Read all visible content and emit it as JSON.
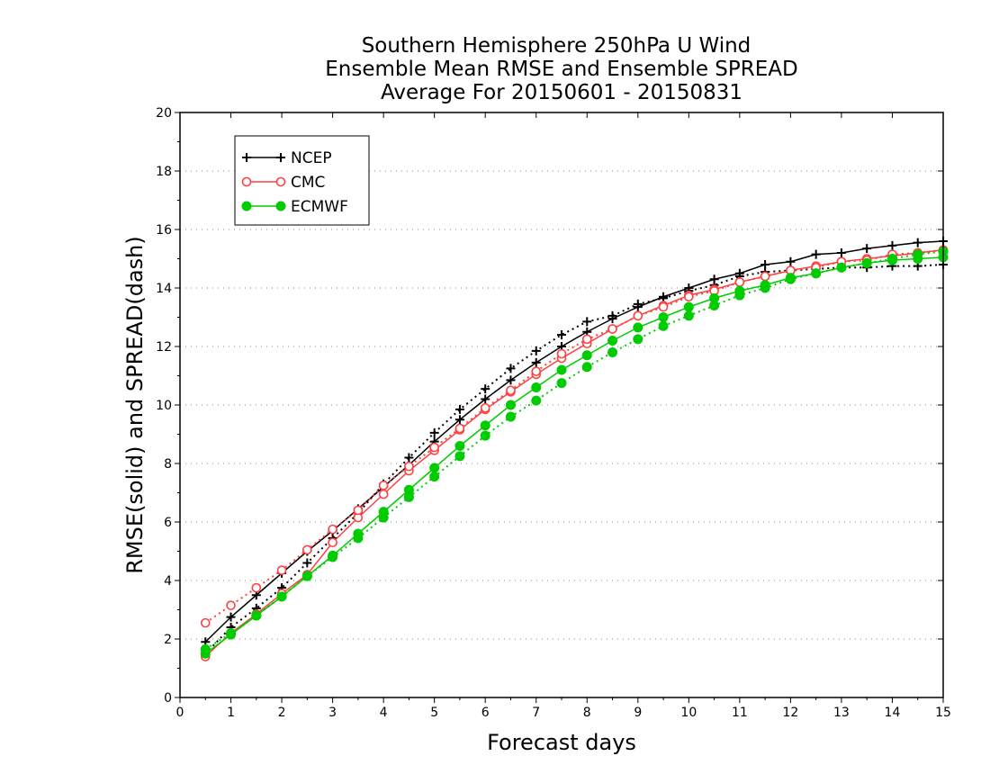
{
  "chart_data": {
    "type": "line",
    "title": [
      "Southern Hemisphere 250hPa U Wind",
      "Ensemble Mean RMSE and Ensemble SPREAD",
      "Average For 20150601 - 20150831"
    ],
    "xlabel": "Forecast days",
    "ylabel": "RMSE(solid) and SPREAD(dash)",
    "xlim": [
      0,
      15
    ],
    "ylim": [
      0,
      20
    ],
    "xticks": [
      0,
      1,
      2,
      3,
      4,
      5,
      6,
      7,
      8,
      9,
      10,
      11,
      12,
      13,
      14,
      15
    ],
    "yticks": [
      0,
      2,
      4,
      6,
      8,
      10,
      12,
      14,
      16,
      18,
      20
    ],
    "grid": true,
    "legend": "top-left",
    "x": [
      0.5,
      1,
      1.5,
      2,
      2.5,
      3,
      3.5,
      4,
      4.5,
      5,
      5.5,
      6,
      6.5,
      7,
      7.5,
      8,
      8.5,
      9,
      9.5,
      10,
      10.5,
      11,
      11.5,
      12,
      12.5,
      13,
      13.5,
      14,
      14.5,
      15
    ],
    "series": [
      {
        "name": "NCEP",
        "metric": "RMSE",
        "color": "#000000",
        "marker": "plus",
        "line": "solid",
        "values": [
          1.9,
          2.75,
          3.5,
          4.25,
          5.0,
          5.7,
          6.45,
          7.2,
          7.95,
          8.75,
          9.5,
          10.2,
          10.85,
          11.45,
          12.0,
          12.5,
          12.95,
          13.35,
          13.7,
          14.0,
          14.3,
          14.5,
          14.8,
          14.9,
          15.15,
          15.2,
          15.35,
          15.45,
          15.55,
          15.6
        ]
      },
      {
        "name": "NCEP",
        "metric": "SPREAD",
        "color": "#000000",
        "marker": "plus",
        "line": "dash",
        "values": [
          1.5,
          2.4,
          3.05,
          3.75,
          4.6,
          5.45,
          6.3,
          7.3,
          8.2,
          9.05,
          9.85,
          10.55,
          11.25,
          11.85,
          12.4,
          12.85,
          13.05,
          13.45,
          13.65,
          13.9,
          14.1,
          14.4,
          14.55,
          14.6,
          14.65,
          14.7,
          14.7,
          14.75,
          14.75,
          14.8
        ]
      },
      {
        "name": "CMC",
        "metric": "RMSE",
        "color": "#ff4040",
        "marker": "circle",
        "line": "solid",
        "values": [
          1.4,
          2.2,
          2.85,
          3.55,
          4.2,
          5.3,
          6.15,
          6.95,
          7.75,
          8.45,
          9.15,
          9.85,
          10.45,
          11.05,
          11.6,
          12.1,
          12.6,
          13.05,
          13.4,
          13.75,
          13.95,
          14.2,
          14.4,
          14.6,
          14.75,
          14.9,
          15.0,
          15.1,
          15.2,
          15.3
        ]
      },
      {
        "name": "CMC",
        "metric": "SPREAD",
        "color": "#ff4040",
        "marker": "circle",
        "line": "dash",
        "values": [
          2.55,
          3.15,
          3.75,
          4.35,
          5.05,
          5.75,
          6.4,
          7.25,
          7.9,
          8.55,
          9.2,
          9.9,
          10.5,
          11.15,
          11.75,
          12.25,
          12.6,
          13.05,
          13.35,
          13.7,
          13.9,
          14.2,
          14.4,
          14.6,
          14.7,
          14.9,
          14.95,
          15.15,
          15.2,
          15.3
        ]
      },
      {
        "name": "ECMWF",
        "metric": "RMSE",
        "color": "#00cc00",
        "marker": "dot",
        "line": "solid",
        "values": [
          1.5,
          2.15,
          2.8,
          3.45,
          4.15,
          4.85,
          5.6,
          6.35,
          7.1,
          7.85,
          8.6,
          9.3,
          10.0,
          10.6,
          11.2,
          11.7,
          12.2,
          12.65,
          13.0,
          13.35,
          13.65,
          13.9,
          14.1,
          14.35,
          14.5,
          14.7,
          14.85,
          14.95,
          15.0,
          15.05
        ]
      },
      {
        "name": "ECMWF",
        "metric": "SPREAD",
        "color": "#00cc00",
        "marker": "dot",
        "line": "dash",
        "values": [
          1.65,
          2.2,
          2.8,
          3.45,
          4.15,
          4.8,
          5.45,
          6.15,
          6.85,
          7.55,
          8.25,
          8.95,
          9.6,
          10.15,
          10.75,
          11.3,
          11.8,
          12.25,
          12.7,
          13.05,
          13.4,
          13.75,
          14.0,
          14.3,
          14.5,
          14.7,
          14.85,
          15.0,
          15.15,
          15.25
        ]
      }
    ]
  }
}
